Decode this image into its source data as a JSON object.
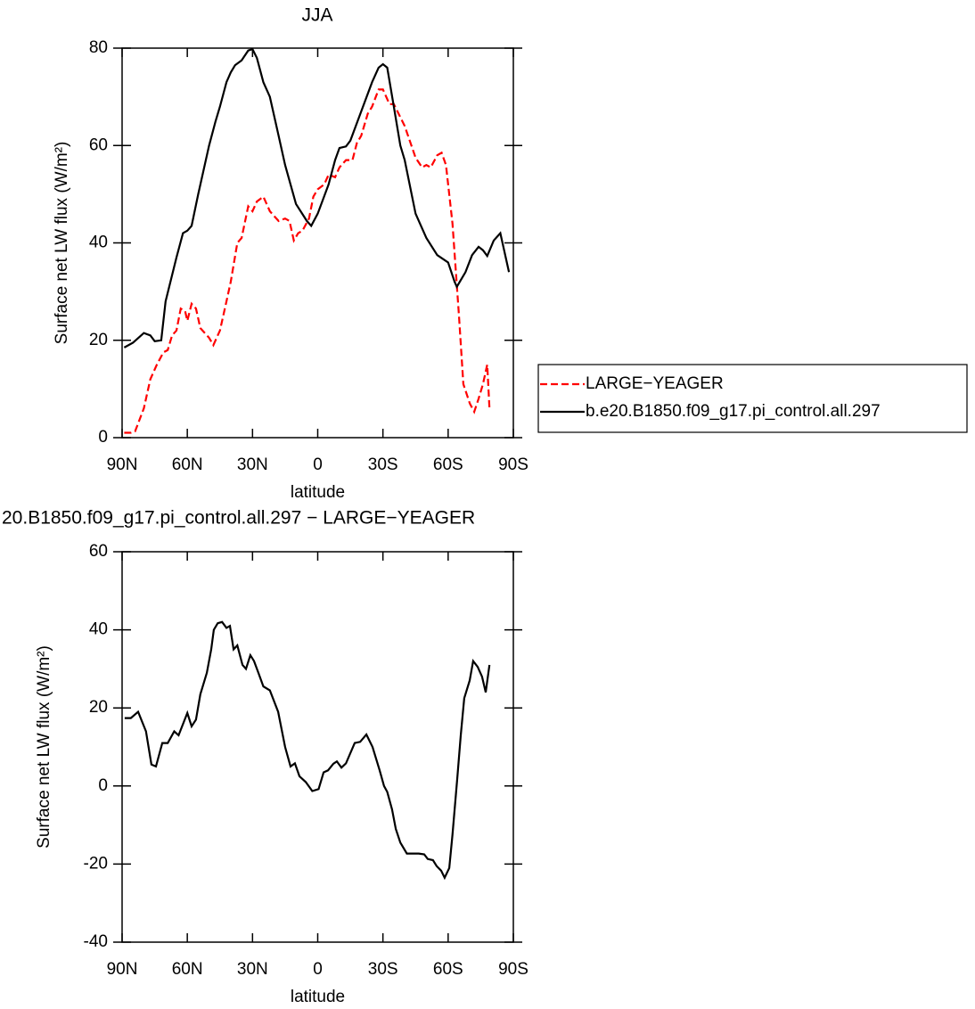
{
  "chart_data": [
    {
      "type": "line",
      "title": "JJA",
      "xlabel": "latitude",
      "ylabel": "Surface net LW flux (W/m²)",
      "xlim": [
        90,
        -90
      ],
      "ylim": [
        0,
        80
      ],
      "xticks": [
        {
          "value": 90,
          "label": "90N"
        },
        {
          "value": 60,
          "label": "60N"
        },
        {
          "value": 30,
          "label": "30N"
        },
        0,
        {
          "value": -30,
          "label": "30S"
        },
        {
          "value": -60,
          "label": "60S"
        },
        {
          "value": -90,
          "label": "90S"
        }
      ],
      "yticks": [
        0,
        20,
        40,
        60,
        80
      ],
      "legend": "outside-right",
      "series": [
        {
          "name": "LARGE−YEAGER",
          "color": "#ff0000",
          "line_style": "dashed",
          "x": [
            89,
            86,
            84,
            80,
            77,
            74,
            71,
            69,
            67,
            65,
            63,
            61,
            60,
            58,
            56,
            54,
            50,
            48,
            45,
            42,
            40,
            37,
            35,
            32,
            30,
            28,
            25,
            22,
            20,
            18,
            15,
            13,
            11,
            9,
            7,
            4,
            2,
            0,
            -3,
            -5,
            -8,
            -10,
            -13,
            -16,
            -18,
            -20,
            -23,
            -25,
            -28,
            -30,
            -33,
            -35,
            -40,
            -45,
            -48,
            -50,
            -52,
            -55,
            -57,
            -59,
            -62,
            -65,
            -67,
            -70,
            -72,
            -74,
            -76,
            -78,
            -79
          ],
          "values": [
            1,
            1,
            1.3,
            6,
            12,
            15,
            17.5,
            18,
            21,
            22,
            26.5,
            26,
            24,
            27.5,
            26.5,
            22.5,
            20.5,
            19,
            22,
            28,
            32,
            40,
            41,
            47.5,
            46.5,
            48.5,
            49.5,
            46.5,
            45.5,
            44.5,
            45,
            44.5,
            40.5,
            42,
            42.5,
            45,
            49.5,
            51,
            52,
            54,
            53.5,
            55.5,
            57,
            57,
            60.5,
            62,
            66.5,
            68,
            71.5,
            71.5,
            68.5,
            68.5,
            64,
            57.5,
            55.5,
            56,
            55.5,
            58,
            58.5,
            56,
            44,
            25,
            11,
            7,
            5.3,
            8,
            11,
            15,
            6
          ]
        },
        {
          "name": "b.e20.B1850.f09_g17.pi_control.all.297",
          "color": "#000000",
          "line_style": "solid",
          "x": [
            89,
            85,
            80,
            77,
            75,
            72,
            70,
            65,
            62,
            60,
            58,
            55,
            50,
            47,
            45,
            42,
            40,
            38,
            35,
            32,
            30,
            28,
            25,
            22,
            18,
            15,
            10,
            5,
            3,
            0,
            -5,
            -8,
            -10,
            -13,
            -15,
            -20,
            -25,
            -28,
            -30,
            -32,
            -35,
            -38,
            -40,
            -45,
            -50,
            -55,
            -60,
            -63,
            -64,
            -68,
            -71,
            -74,
            -76,
            -78,
            -81,
            -84,
            -88
          ],
          "values": [
            18.5,
            19.5,
            21.5,
            21,
            19.8,
            20,
            28,
            37,
            42,
            42.5,
            43.5,
            50,
            60,
            65,
            68,
            73,
            75,
            76.5,
            77.5,
            79.5,
            79.8,
            78,
            73,
            70,
            62,
            56,
            48,
            44.5,
            43.5,
            46,
            52,
            57,
            59.5,
            59.8,
            61,
            67,
            73,
            76,
            76.7,
            76,
            68,
            60,
            57,
            46,
            41,
            37.5,
            36,
            32,
            31,
            34,
            37.5,
            39.2,
            38.5,
            37.3,
            40.5,
            42,
            34
          ]
        }
      ]
    },
    {
      "type": "line",
      "title": "20.B1850.f09_g17.pi_control.all.297 − LARGE−YEAGER",
      "xlabel": "latitude",
      "ylabel": "Surface net LW flux (W/m²)",
      "xlim": [
        90,
        -90
      ],
      "ylim": [
        -40,
        60
      ],
      "xticks": [
        {
          "value": 90,
          "label": "90N"
        },
        {
          "value": 60,
          "label": "60N"
        },
        {
          "value": 30,
          "label": "30N"
        },
        0,
        {
          "value": -30,
          "label": "30S"
        },
        {
          "value": -60,
          "label": "60S"
        },
        {
          "value": -90,
          "label": "90S"
        }
      ],
      "yticks": [
        -40,
        -20,
        0,
        20,
        40,
        60
      ],
      "series": [
        {
          "color": "#000000",
          "line_style": "solid",
          "x": [
            88.8,
            86,
            82.6,
            79,
            76.5,
            74.4,
            71.5,
            69,
            66,
            64,
            60,
            58,
            56,
            54,
            51,
            49,
            47.8,
            46,
            44,
            42,
            40.4,
            38.7,
            37,
            34.6,
            33,
            31,
            29.3,
            27.3,
            25,
            22,
            18.2,
            15,
            12.5,
            10.5,
            8.4,
            5.5,
            2.5,
            -0.4,
            -2.7,
            -4.7,
            -7.2,
            -8.8,
            -10.9,
            -13,
            -17,
            -19.5,
            -22.4,
            -25.2,
            -28.5,
            -30.5,
            -32,
            -34.2,
            -35.9,
            -38,
            -41,
            -43.7,
            -46.5,
            -49,
            -50.6,
            -53,
            -54.7,
            -56.8,
            -58.4,
            -60.5,
            -62,
            -64.2,
            -65.8,
            -67.4,
            -69.9,
            -71.5,
            -73.6,
            -75.6,
            -77.3,
            -79
          ],
          "values": [
            17.4,
            17.4,
            19,
            14,
            5.5,
            5,
            11,
            11,
            14,
            13,
            18.7,
            15.3,
            17,
            23.5,
            29,
            35,
            40,
            41.7,
            42,
            40.5,
            41,
            35,
            36,
            31,
            30,
            33.5,
            32,
            29,
            25.5,
            24.5,
            19,
            10,
            5,
            5.8,
            2.5,
            1,
            -1.3,
            -0.8,
            3.5,
            4,
            5.7,
            6.3,
            4.7,
            5.8,
            11,
            11.3,
            13.2,
            10,
            4,
            0,
            -1.5,
            -6,
            -11,
            -14.5,
            -17.3,
            -17.3,
            -17.3,
            -17.5,
            -18.7,
            -19,
            -20.5,
            -21.7,
            -23.5,
            -21,
            -12.5,
            2,
            13,
            22.5,
            27,
            32,
            30.5,
            28,
            24,
            31
          ]
        }
      ]
    }
  ]
}
